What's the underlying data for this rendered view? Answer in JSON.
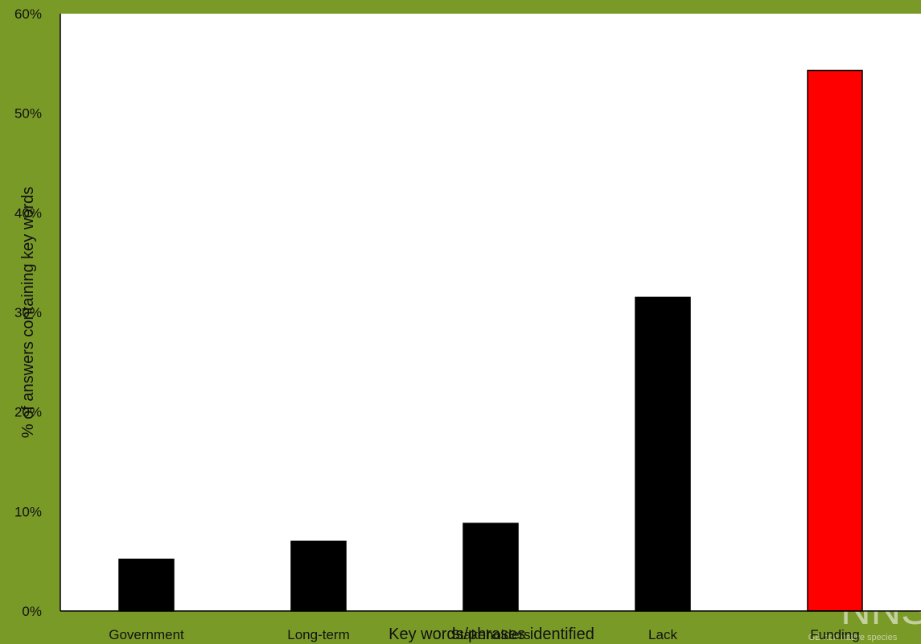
{
  "chart_data": {
    "type": "bar",
    "categories": [
      "Government",
      "Long-term",
      "Stakeholders",
      "Lack",
      "Funding"
    ],
    "values": [
      5.2,
      7.0,
      8.8,
      31.5,
      54.3
    ],
    "bar_colors": [
      "#000000",
      "#000000",
      "#000000",
      "#000000",
      "#ff0000"
    ],
    "ylim": [
      0,
      60
    ],
    "yticks": [
      0,
      10,
      20,
      30,
      40,
      50,
      60
    ],
    "ytick_labels": [
      "0%",
      "10%",
      "20%",
      "30%",
      "40%",
      "50%",
      "60%"
    ],
    "xlabel": "Key words/phrases identified",
    "ylabel": "% of answers containing key words",
    "grid": false
  },
  "colors": {
    "background": "#7a9a28",
    "plot_area": "#ffffff",
    "highlight": "#ff0000",
    "bar": "#000000"
  },
  "watermark": {
    "text": "GB non-native species",
    "logo_text": "NNS"
  }
}
